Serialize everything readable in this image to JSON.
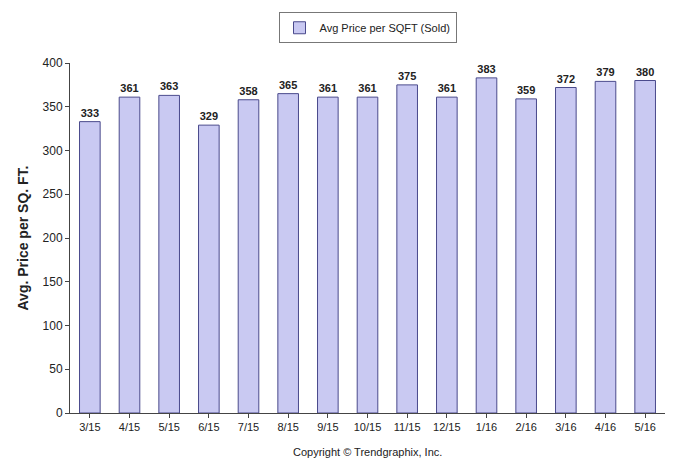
{
  "chart_data": {
    "type": "bar",
    "categories": [
      "3/15",
      "4/15",
      "5/15",
      "6/15",
      "7/15",
      "8/15",
      "9/15",
      "10/15",
      "11/15",
      "12/15",
      "1/16",
      "2/16",
      "3/16",
      "4/16",
      "5/16"
    ],
    "series": [
      {
        "name": "Avg Price per SQFT (Sold)",
        "color": "#c9c9f2",
        "values": [
          333,
          361,
          363,
          329,
          358,
          365,
          361,
          361,
          375,
          361,
          383,
          359,
          372,
          379,
          380
        ]
      }
    ],
    "y_label": "Avg. Price per SQ. FT.",
    "annotations": [
      "Copyright © Trendgraphix, Inc."
    ],
    "ylim": [
      0,
      400
    ],
    "yticks": [
      0,
      50,
      100,
      150,
      200,
      250,
      300,
      350,
      400
    ],
    "grid": false,
    "legend": "top",
    "data_labels": true
  }
}
